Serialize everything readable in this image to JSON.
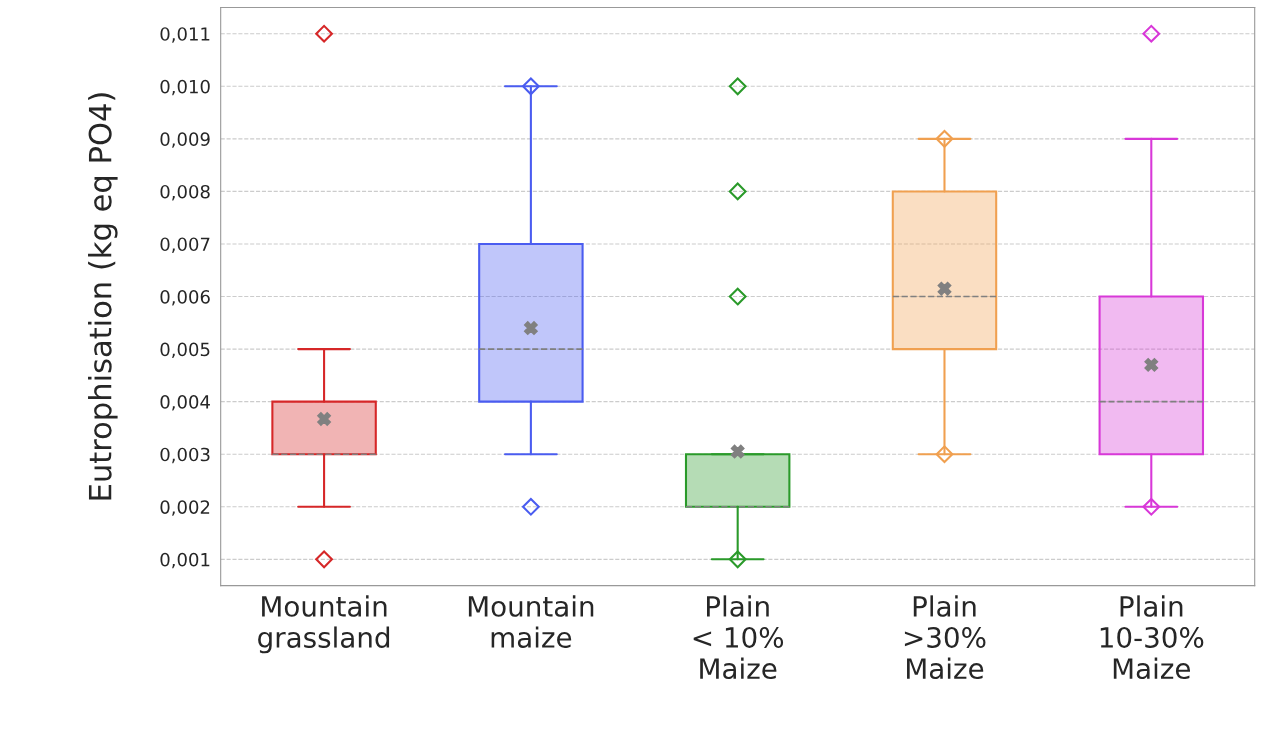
{
  "chart_data": {
    "type": "box",
    "ylabel": "Eutrophisation (kg eq PO4)",
    "categories": [
      "Mountain\ngrassland",
      "Mountain\nmaize",
      "Plain\n< 10%\nMaize",
      "Plain\n>30%\nMaize",
      "Plain\n10-30%\nMaize"
    ],
    "colors": [
      "#d62728",
      "#4a5cf0",
      "#2a9a2a",
      "#f0a050",
      "#d838d8"
    ],
    "boxes": [
      {
        "low": 0.002,
        "q1": 0.003,
        "median": 0.003,
        "q3": 0.004,
        "high": 0.005,
        "mean": 0.00367,
        "outliers": [
          0.011,
          0.001
        ]
      },
      {
        "low": 0.003,
        "q1": 0.004,
        "median": 0.005,
        "q3": 0.007,
        "high": 0.01,
        "mean": 0.0054,
        "outliers": [
          0.01,
          0.002
        ]
      },
      {
        "low": 0.001,
        "q1": 0.002,
        "median": 0.002,
        "q3": 0.003,
        "high": 0.003,
        "mean": 0.00305,
        "outliers": [
          0.01,
          0.008,
          0.006,
          0.001
        ]
      },
      {
        "low": 0.003,
        "q1": 0.005,
        "median": 0.006,
        "q3": 0.008,
        "high": 0.009,
        "mean": 0.00615,
        "outliers": [
          0.009,
          0.003
        ]
      },
      {
        "low": 0.002,
        "q1": 0.003,
        "median": 0.004,
        "q3": 0.006,
        "high": 0.009,
        "mean": 0.0047,
        "outliers": [
          0.011,
          0.002
        ]
      }
    ],
    "ylim": [
      0.0005,
      0.0115
    ],
    "yticks": [
      {
        "value": 0.001,
        "label": "0,001"
      },
      {
        "value": 0.002,
        "label": "0,002"
      },
      {
        "value": 0.003,
        "label": "0,003"
      },
      {
        "value": 0.004,
        "label": "0,004"
      },
      {
        "value": 0.005,
        "label": "0,005"
      },
      {
        "value": 0.006,
        "label": "0,006"
      },
      {
        "value": 0.007,
        "label": "0,007"
      },
      {
        "value": 0.008,
        "label": "0,008"
      },
      {
        "value": 0.009,
        "label": "0,009"
      },
      {
        "value": 0.01,
        "label": "0,010"
      },
      {
        "value": 0.011,
        "label": "0,011"
      }
    ],
    "grid": "y",
    "marker": "diamond",
    "legend": false
  }
}
